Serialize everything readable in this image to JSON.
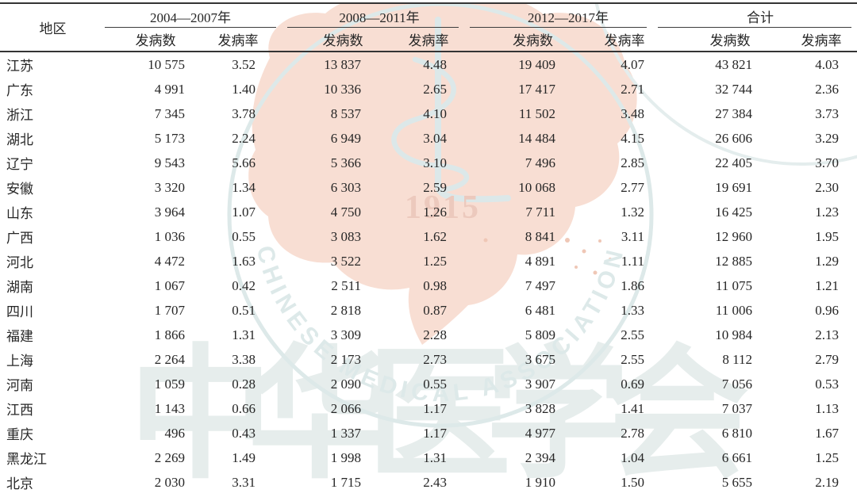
{
  "table": {
    "region_header": "地区",
    "period_headers": [
      "2004—2007年",
      "2008—2011年",
      "2012—2017年",
      "合计"
    ],
    "sub_headers": {
      "cases": "发病数",
      "rate": "发病率"
    },
    "rows": [
      {
        "region": "江苏",
        "cells": [
          "10 575",
          "3.52",
          "13 837",
          "4.48",
          "19 409",
          "4.07",
          "43 821",
          "4.03"
        ]
      },
      {
        "region": "广东",
        "cells": [
          "4 991",
          "1.40",
          "10 336",
          "2.65",
          "17 417",
          "2.71",
          "32 744",
          "2.36"
        ]
      },
      {
        "region": "浙江",
        "cells": [
          "7 345",
          "3.78",
          "8 537",
          "4.10",
          "11 502",
          "3.48",
          "27 384",
          "3.73"
        ]
      },
      {
        "region": "湖北",
        "cells": [
          "5 173",
          "2.24",
          "6 949",
          "3.04",
          "14 484",
          "4.15",
          "26 606",
          "3.29"
        ]
      },
      {
        "region": "辽宁",
        "cells": [
          "9 543",
          "5.66",
          "5 366",
          "3.10",
          "7 496",
          "2.85",
          "22 405",
          "3.70"
        ]
      },
      {
        "region": "安徽",
        "cells": [
          "3 320",
          "1.34",
          "6 303",
          "2.59",
          "10 068",
          "2.77",
          "19 691",
          "2.30"
        ]
      },
      {
        "region": "山东",
        "cells": [
          "3 964",
          "1.07",
          "4 750",
          "1.26",
          "7 711",
          "1.32",
          "16 425",
          "1.23"
        ]
      },
      {
        "region": "广西",
        "cells": [
          "1 036",
          "0.55",
          "3 083",
          "1.62",
          "8 841",
          "3.11",
          "12 960",
          "1.95"
        ]
      },
      {
        "region": "河北",
        "cells": [
          "4 472",
          "1.63",
          "3 522",
          "1.25",
          "4 891",
          "1.11",
          "12 885",
          "1.29"
        ]
      },
      {
        "region": "湖南",
        "cells": [
          "1 067",
          "0.42",
          "2 511",
          "0.98",
          "7 497",
          "1.86",
          "11 075",
          "1.21"
        ]
      },
      {
        "region": "四川",
        "cells": [
          "1 707",
          "0.51",
          "2 818",
          "0.87",
          "6 481",
          "1.33",
          "11 006",
          "0.96"
        ]
      },
      {
        "region": "福建",
        "cells": [
          "1 866",
          "1.31",
          "3 309",
          "2.28",
          "5 809",
          "2.55",
          "10 984",
          "2.13"
        ]
      },
      {
        "region": "上海",
        "cells": [
          "2 264",
          "3.38",
          "2 173",
          "2.73",
          "3 675",
          "2.55",
          "8 112",
          "2.79"
        ]
      },
      {
        "region": "河南",
        "cells": [
          "1 059",
          "0.28",
          "2 090",
          "0.55",
          "3 907",
          "0.69",
          "7 056",
          "0.53"
        ]
      },
      {
        "region": "江西",
        "cells": [
          "1 143",
          "0.66",
          "2 066",
          "1.17",
          "3 828",
          "1.41",
          "7 037",
          "1.13"
        ]
      },
      {
        "region": "重庆",
        "cells": [
          "496",
          "0.43",
          "1 337",
          "1.17",
          "4 977",
          "2.78",
          "6 810",
          "1.67"
        ]
      },
      {
        "region": "黑龙江",
        "cells": [
          "2 269",
          "1.49",
          "1 998",
          "1.31",
          "2 394",
          "1.04",
          "6 661",
          "1.25"
        ]
      },
      {
        "region": "北京",
        "cells": [
          "2 030",
          "3.31",
          "1 715",
          "2.43",
          "1 910",
          "1.50",
          "5 655",
          "2.19"
        ]
      }
    ]
  },
  "watermark": {
    "arc_text": "CHINESE  MEDICAL  ASSOCIATION",
    "founding_year": "1915",
    "hanzi_text": "中华医学会",
    "map_color": "#f8ded3",
    "ring_color": "#dde9e9",
    "year_color": "#ecc9bd",
    "hanzi_color": "#e6edec"
  },
  "colors": {
    "text": "#262626",
    "rule": "#343434"
  }
}
